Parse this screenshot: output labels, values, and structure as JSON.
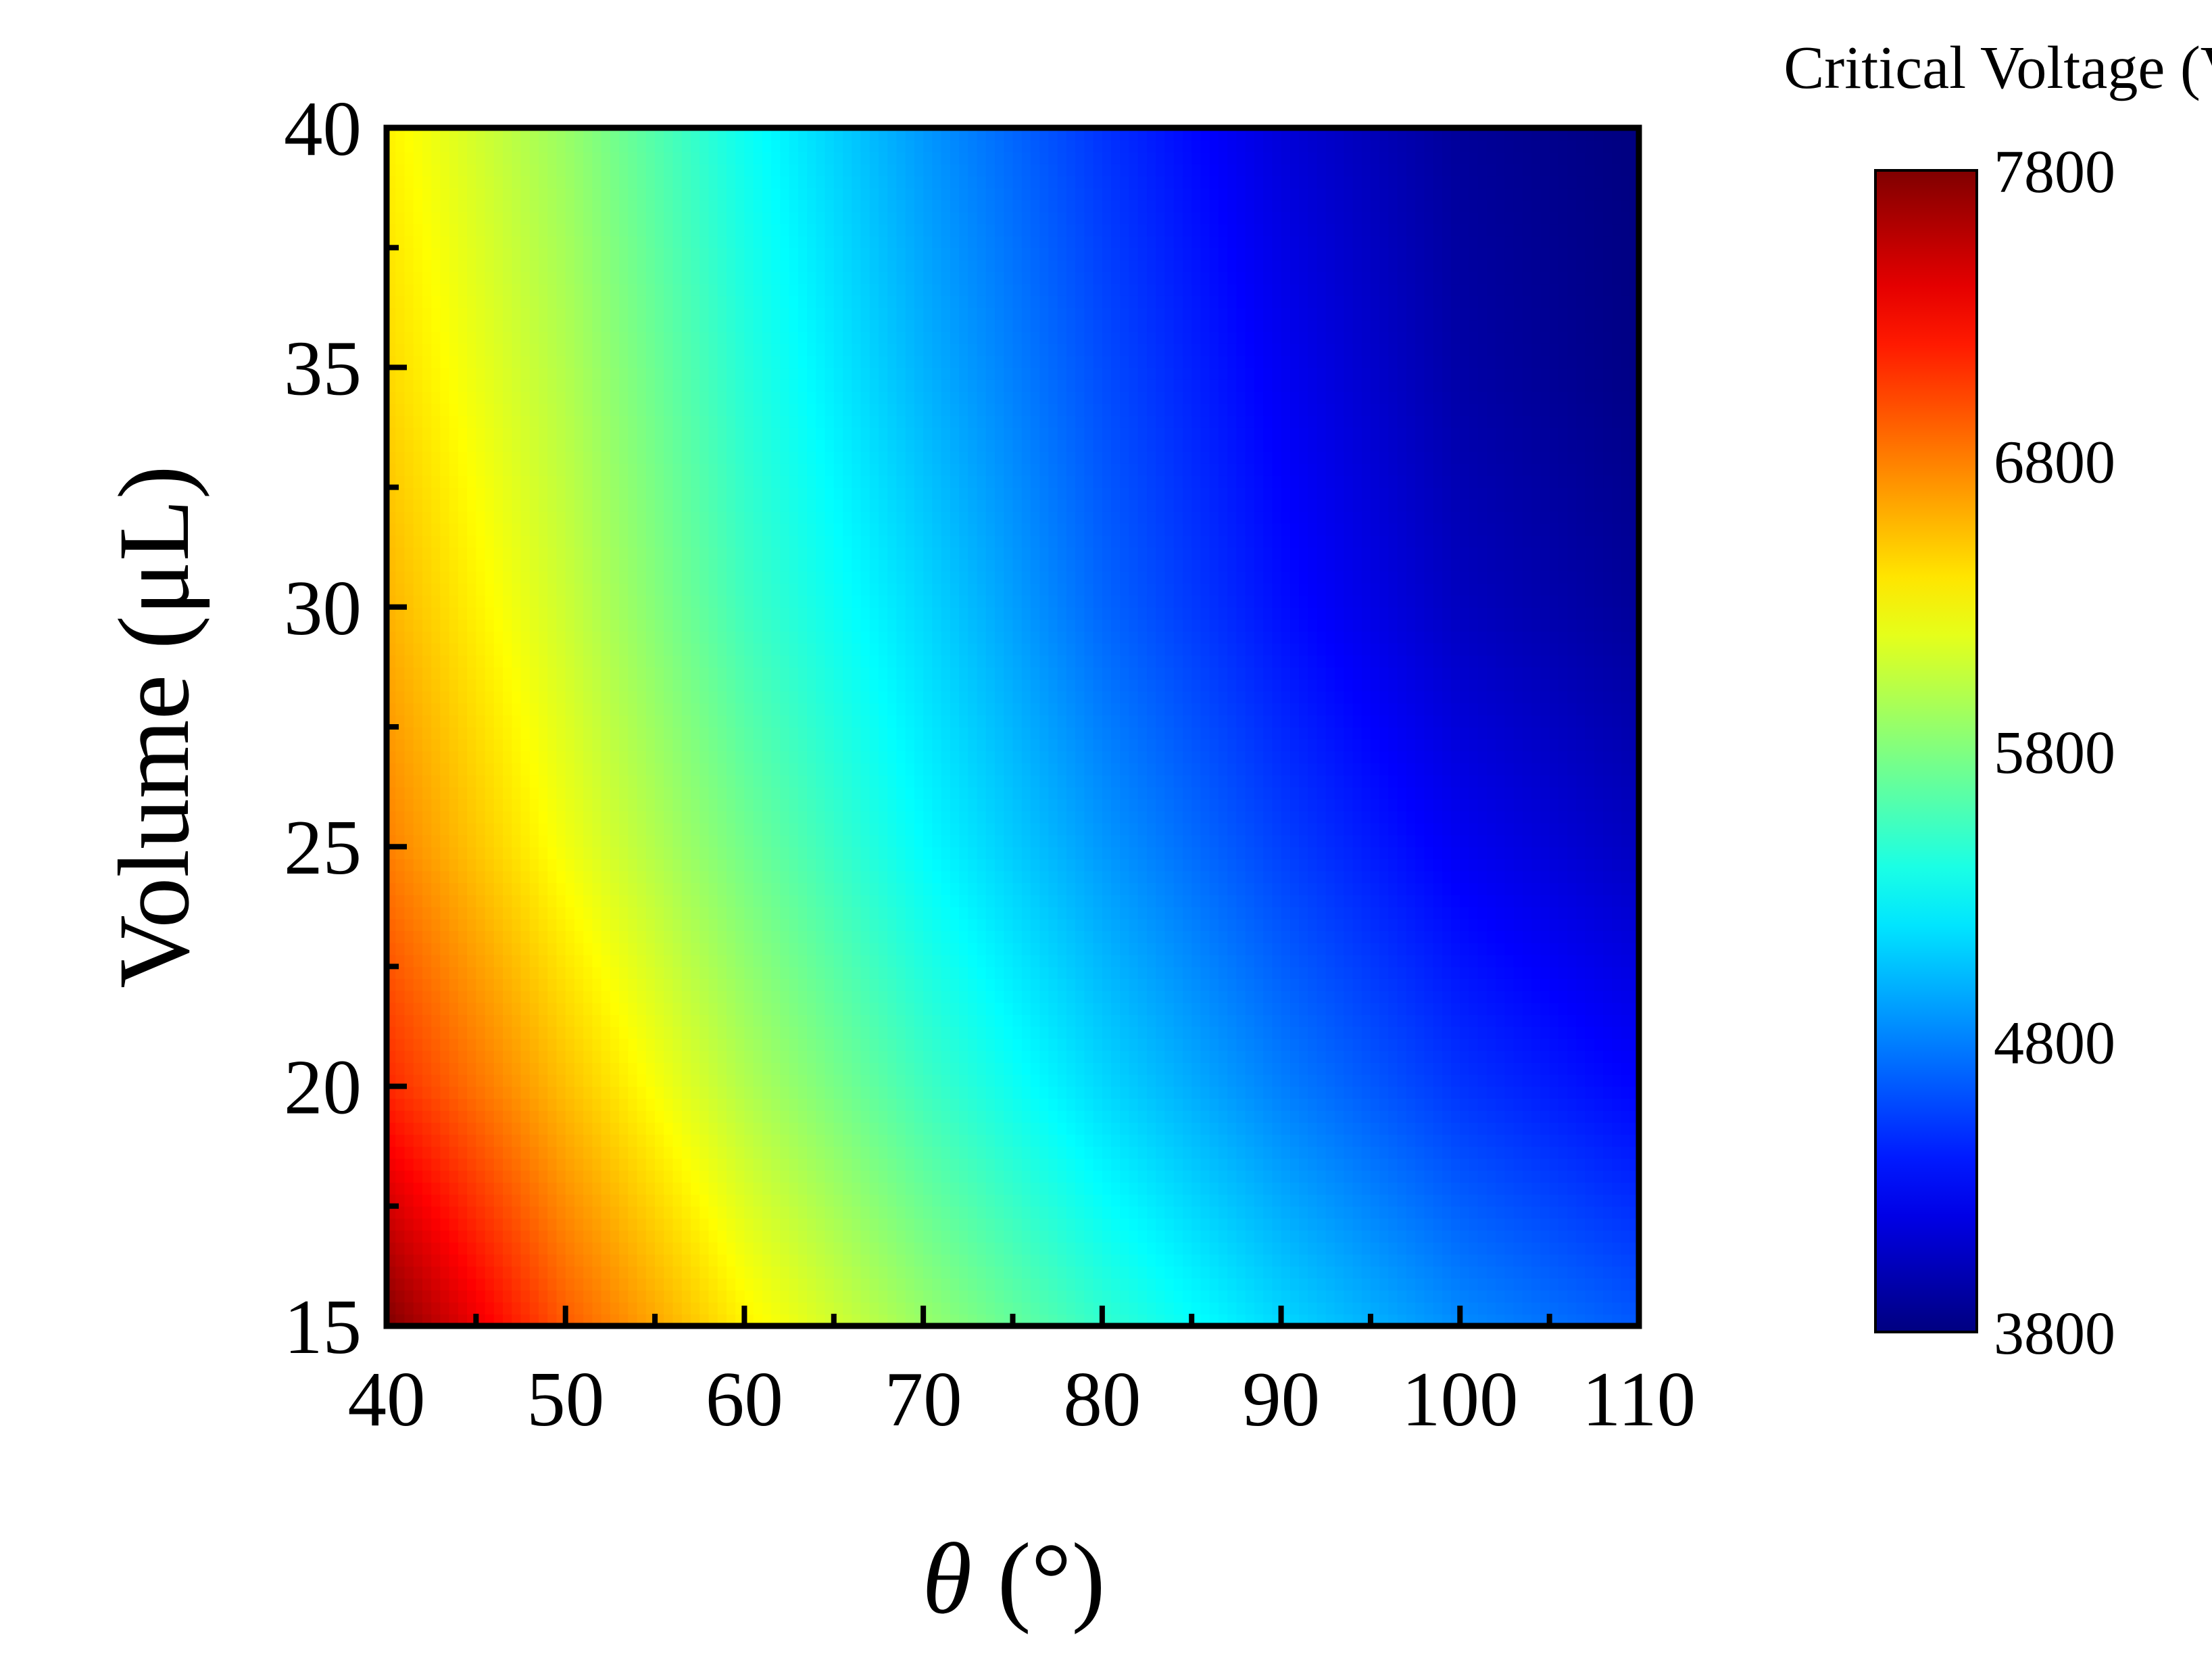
{
  "chart_data": {
    "type": "heatmap",
    "xlabel_symbol": "θ",
    "xlabel_unit": " (°)",
    "ylabel": "Volume (μL)",
    "colorbar_title": "Critical Voltage (V)",
    "xlim": [
      40,
      110
    ],
    "ylim": [
      15,
      40
    ],
    "x_ticks": [
      40,
      50,
      60,
      70,
      80,
      90,
      100,
      110
    ],
    "y_ticks": [
      15,
      20,
      25,
      30,
      35,
      40
    ],
    "colorbar_range": [
      3800,
      7800
    ],
    "colorbar_ticks": [
      3800,
      4800,
      5800,
      6800,
      7800
    ],
    "colormap": "jet",
    "grid": false,
    "x": [
      40,
      50,
      60,
      70,
      80,
      90,
      100,
      110
    ],
    "y": [
      15,
      20,
      25,
      30,
      35,
      40
    ],
    "z": [
      [
        7800,
        6950,
        6350,
        5900,
        5500,
        5150,
        4850,
        4650
      ],
      [
        7150,
        6550,
        6000,
        5550,
        5150,
        4800,
        4500,
        4300
      ],
      [
        6800,
        6250,
        5750,
        5300,
        4900,
        4550,
        4250,
        4050
      ],
      [
        6600,
        6100,
        5550,
        5150,
        4700,
        4350,
        4050,
        3900
      ],
      [
        6450,
        6000,
        5450,
        5000,
        4600,
        4250,
        3950,
        3820
      ],
      [
        6350,
        5900,
        5350,
        4900,
        4500,
        4150,
        3900,
        3800
      ]
    ]
  }
}
